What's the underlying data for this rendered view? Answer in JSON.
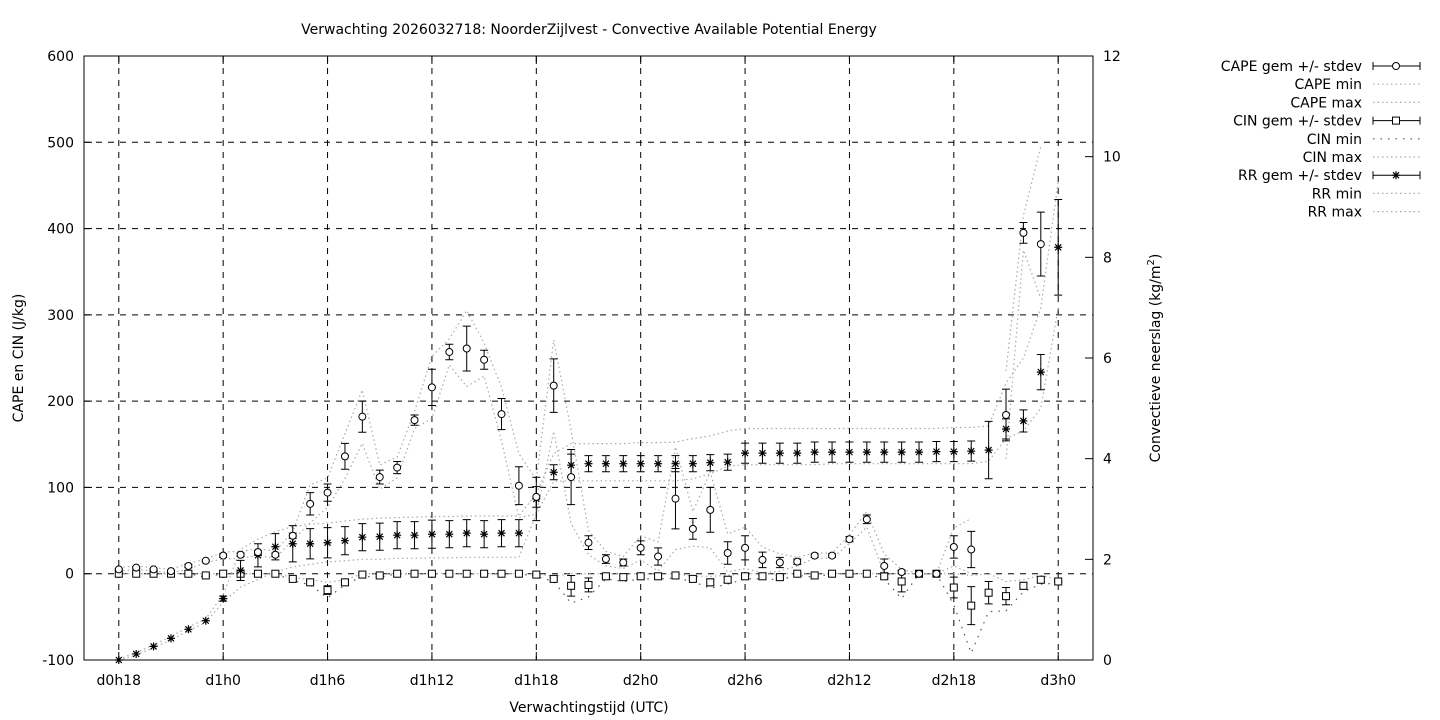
{
  "chart_data": {
    "type": "line",
    "title": "Verwachting 2026032718: NoorderZijlvest - Convective Available Potential Energy",
    "xlabel": "Verwachtingstijd (UTC)",
    "ylabel": "CAPE en CIN (J/kg)",
    "y2label": "Convectieve neerslag (kg/m",
    "y2label_sup": "2",
    "y2label_end": ")",
    "x_unit": "hours since d0h18",
    "xlim": [
      -2,
      56
    ],
    "ylim": [
      -100,
      600
    ],
    "y2lim": [
      0,
      12
    ],
    "grid": true,
    "legend_position": "outside-right",
    "x_ticks": [
      {
        "h": 0,
        "label": "d0h18"
      },
      {
        "h": 6,
        "label": "d1h0"
      },
      {
        "h": 12,
        "label": "d1h6"
      },
      {
        "h": 18,
        "label": "d1h12"
      },
      {
        "h": 24,
        "label": "d1h18"
      },
      {
        "h": 30,
        "label": "d2h0"
      },
      {
        "h": 36,
        "label": "d2h6"
      },
      {
        "h": 42,
        "label": "d2h12"
      },
      {
        "h": 48,
        "label": "d2h18"
      },
      {
        "h": 54,
        "label": "d3h0"
      }
    ],
    "y_ticks": [
      "-100",
      "0",
      "100",
      "200",
      "300",
      "400",
      "500",
      "600"
    ],
    "y2_ticks": [
      "0",
      "2",
      "4",
      "6",
      "8",
      "10",
      "12"
    ],
    "legend": [
      {
        "label": "CAPE gem +/- stdev",
        "style": "errorbar",
        "marker": "circle"
      },
      {
        "label": "CAPE min",
        "style": "dotted"
      },
      {
        "label": "CAPE max",
        "style": "dotted"
      },
      {
        "label": "CIN gem +/- stdev",
        "style": "errorbar",
        "marker": "square"
      },
      {
        "label": "CIN min",
        "style": "dotted-dark"
      },
      {
        "label": "CIN max",
        "style": "dotted"
      },
      {
        "label": "RR gem +/- stdev",
        "style": "errorbar",
        "marker": "star"
      },
      {
        "label": "RR min",
        "style": "dotted"
      },
      {
        "label": "RR max",
        "style": "dotted"
      }
    ],
    "series": {
      "cape_mean": [
        5,
        7,
        5,
        3,
        9,
        15,
        21,
        22,
        25,
        22,
        44,
        81,
        94,
        136,
        182,
        112,
        123,
        178,
        216,
        257,
        261,
        248,
        185,
        102,
        89,
        218,
        112,
        36,
        17,
        13,
        30,
        20,
        87,
        52,
        74,
        24,
        30,
        16,
        13,
        14,
        21,
        21,
        40,
        63,
        9,
        2,
        0,
        0,
        31,
        28,
        null,
        184,
        395,
        382,
        null
      ],
      "cape_std": [
        1,
        1,
        1,
        1,
        2,
        1,
        2,
        2,
        2,
        2,
        3,
        13,
        10,
        15,
        18,
        8,
        7,
        6,
        21,
        9,
        26,
        11,
        18,
        22,
        12,
        31,
        32,
        8,
        5,
        4,
        8,
        10,
        35,
        12,
        26,
        13,
        14,
        9,
        6,
        3,
        2,
        2,
        3,
        5,
        8,
        2,
        0,
        0,
        13,
        21,
        null,
        30,
        12,
        37,
        null
      ],
      "cape_min": [
        3,
        5,
        3,
        1,
        5,
        13,
        17,
        18,
        21,
        18,
        39,
        59,
        77,
        110,
        151,
        98,
        111,
        168,
        180,
        242,
        217,
        229,
        154,
        65,
        69,
        165,
        58,
        22,
        9,
        6,
        16,
        3,
        28,
        32,
        30,
        2,
        6,
        1,
        3,
        9,
        18,
        18,
        35,
        54,
        0,
        0,
        0,
        0,
        9,
        0,
        null,
        133,
        375,
        319,
        null
      ],
      "cape_max": [
        7,
        9,
        7,
        5,
        12,
        17,
        25,
        26,
        29,
        26,
        49,
        103,
        111,
        162,
        213,
        126,
        135,
        188,
        252,
        272,
        305,
        267,
        216,
        139,
        109,
        271,
        166,
        50,
        26,
        20,
        44,
        37,
        147,
        72,
        118,
        46,
        54,
        31,
        23,
        19,
        24,
        24,
        45,
        72,
        23,
        5,
        0,
        0,
        53,
        64,
        null,
        235,
        415,
        495,
        null
      ],
      "cin_mean": [
        0,
        0,
        0,
        0,
        0,
        -2,
        0,
        0,
        0,
        0,
        -6,
        -10,
        -19,
        -10,
        -1,
        -2,
        0,
        0,
        0,
        0,
        0,
        0,
        0,
        0,
        -1,
        -6,
        -14,
        -13,
        -3,
        -4,
        -3,
        -3,
        -2,
        -6,
        -10,
        -7,
        -3,
        -3,
        -4,
        0,
        -2,
        0,
        0,
        0,
        -3,
        -9,
        0,
        0,
        -16,
        -37,
        -22,
        -26,
        -14,
        -7,
        -9
      ],
      "cin_std": [
        0,
        0,
        0,
        0,
        0,
        1,
        0,
        0,
        0,
        0,
        1,
        2,
        5,
        2,
        1,
        1,
        0,
        0,
        0,
        0,
        0,
        0,
        0,
        0,
        1,
        2,
        12,
        8,
        2,
        3,
        2,
        2,
        2,
        2,
        4,
        3,
        2,
        2,
        2,
        1,
        1,
        0,
        0,
        0,
        2,
        12,
        0,
        0,
        12,
        22,
        13,
        10,
        4,
        3,
        1
      ],
      "cin_min": [
        0,
        0,
        0,
        0,
        0,
        -4,
        0,
        0,
        0,
        0,
        -8,
        -13,
        -28,
        -13,
        -3,
        -4,
        0,
        0,
        0,
        0,
        0,
        0,
        0,
        0,
        -3,
        -9,
        -34,
        -27,
        -6,
        -9,
        -6,
        -6,
        -5,
        -9,
        -17,
        -12,
        -6,
        -6,
        -7,
        -2,
        -4,
        0,
        0,
        0,
        -6,
        -29,
        0,
        0,
        -36,
        -92,
        -44,
        -43,
        -21,
        -12,
        -11
      ],
      "cin_max": [
        0,
        0,
        0,
        0,
        0,
        0,
        0,
        0,
        0,
        0,
        -4,
        -7,
        -10,
        -7,
        0,
        0,
        0,
        0,
        0,
        0,
        0,
        0,
        0,
        0,
        0,
        -3,
        0,
        0,
        0,
        0,
        0,
        0,
        0,
        -3,
        -3,
        -2,
        0,
        0,
        0,
        0,
        0,
        0,
        0,
        0,
        0,
        0,
        0,
        0,
        0,
        -2,
        0,
        -9,
        -7,
        -2,
        -7
      ],
      "rr_mean": [
        0,
        0.12,
        0.27,
        0.43,
        0.61,
        0.78,
        1.22,
        1.78,
        2.08,
        2.25,
        2.31,
        2.31,
        2.33,
        2.37,
        2.44,
        2.45,
        2.48,
        2.48,
        2.5,
        2.5,
        2.52,
        2.5,
        2.52,
        2.52,
        3.2,
        3.73,
        3.87,
        3.9,
        3.9,
        3.9,
        3.9,
        3.9,
        3.9,
        3.9,
        3.92,
        3.93,
        4.11,
        4.11,
        4.11,
        4.11,
        4.13,
        4.13,
        4.13,
        4.13,
        4.13,
        4.13,
        4.13,
        4.14,
        4.14,
        4.15,
        4.17,
        4.59,
        4.75,
        5.72,
        8.2
      ],
      "rr_std": [
        0,
        0,
        0,
        0,
        0,
        0,
        0.05,
        0.2,
        0.23,
        0.26,
        0.36,
        0.3,
        0.3,
        0.28,
        0.27,
        0.27,
        0.27,
        0.27,
        0.28,
        0.27,
        0.27,
        0.27,
        0.27,
        0.27,
        0.43,
        0.15,
        0.22,
        0.16,
        0.16,
        0.16,
        0.16,
        0.16,
        0.16,
        0.16,
        0.16,
        0.16,
        0.2,
        0.2,
        0.2,
        0.2,
        0.2,
        0.2,
        0.2,
        0.2,
        0.2,
        0.2,
        0.2,
        0.2,
        0.2,
        0.2,
        0.57,
        0.2,
        0.22,
        0.35,
        0.95
      ],
      "rr_min": [
        0,
        0.1,
        0.25,
        0.4,
        0.58,
        0.75,
        1.15,
        1.45,
        1.6,
        1.75,
        1.85,
        1.9,
        1.95,
        1.97,
        2.0,
        2.0,
        2.02,
        2.02,
        2.03,
        2.03,
        2.04,
        2.04,
        2.04,
        2.04,
        2.9,
        3.55,
        3.56,
        3.56,
        3.56,
        3.56,
        3.56,
        3.56,
        3.56,
        3.6,
        3.7,
        3.85,
        3.88,
        3.88,
        3.88,
        3.88,
        3.88,
        3.9,
        3.9,
        3.9,
        3.9,
        3.9,
        3.9,
        3.9,
        3.9,
        3.9,
        3.95,
        4.4,
        4.55,
        5.0,
        7.0
      ],
      "rr_max": [
        0.02,
        0.15,
        0.3,
        0.47,
        0.65,
        0.82,
        1.3,
        2.2,
        2.4,
        2.55,
        2.65,
        2.7,
        2.72,
        2.76,
        2.8,
        2.82,
        2.83,
        2.84,
        2.85,
        2.85,
        2.86,
        2.86,
        2.86,
        2.86,
        3.3,
        4.1,
        4.3,
        4.3,
        4.3,
        4.3,
        4.32,
        4.32,
        4.33,
        4.4,
        4.45,
        4.55,
        4.6,
        4.6,
        4.6,
        4.6,
        4.6,
        4.6,
        4.6,
        4.6,
        4.6,
        4.6,
        4.6,
        4.6,
        4.62,
        4.62,
        4.65,
        5.5,
        6.0,
        7.0,
        9.5
      ]
    }
  }
}
